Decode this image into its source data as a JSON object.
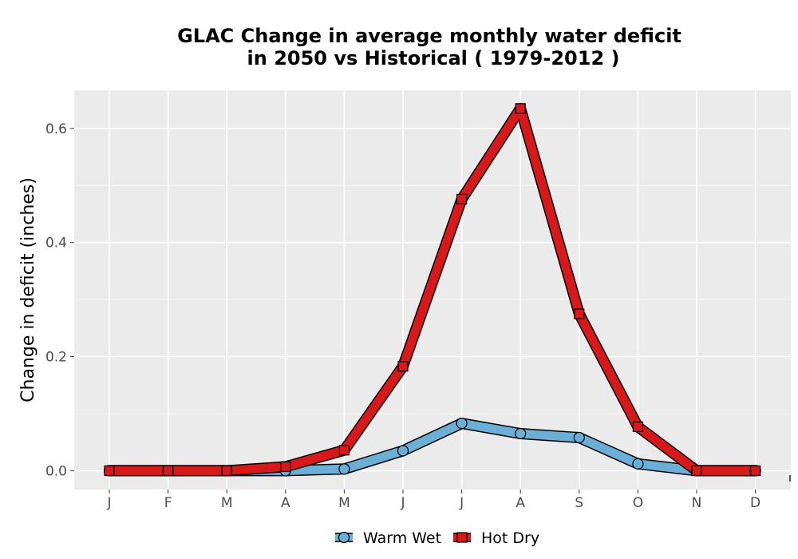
{
  "chart_data": {
    "type": "line",
    "title_line1": "GLAC  Change in average monthly water deficit",
    "title_line2": "in 2050 vs Historical ( 1979-2012 )",
    "ylabel": "Change in deficit (inches)",
    "xlabel": "",
    "categories": [
      "J",
      "F",
      "M",
      "A",
      "M",
      "J",
      "J",
      "A",
      "S",
      "O",
      "N",
      "D"
    ],
    "yticks": [
      "0.0",
      "0.2",
      "0.4",
      "0.6"
    ],
    "ylim": [
      -0.033,
      0.667
    ],
    "grid": true,
    "legend_position": "bottom",
    "series": [
      {
        "name": "Warm Wet",
        "marker": "circle",
        "color": "#6baed6",
        "values": [
          0.0,
          0.0,
          0.0,
          0.0,
          0.003,
          0.035,
          0.083,
          0.065,
          0.058,
          0.012,
          0.0,
          0.0
        ]
      },
      {
        "name": "Hot Dry",
        "marker": "square",
        "color": "#d7191c",
        "values": [
          0.0,
          0.0,
          0.0,
          0.007,
          0.036,
          0.183,
          0.476,
          0.635,
          0.275,
          0.077,
          0.0,
          0.0
        ]
      }
    ]
  }
}
